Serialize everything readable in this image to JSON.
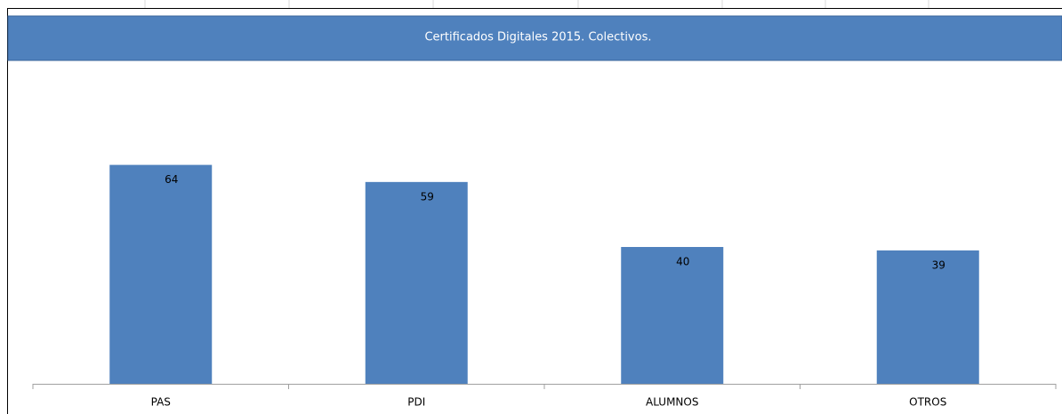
{
  "chart_data": {
    "type": "bar",
    "title": "Certificados Digitales 2015. Colectivos.",
    "categories": [
      "PAS",
      "PDI",
      "ALUMNOS",
      "OTROS"
    ],
    "values": [
      64,
      59,
      40,
      39
    ],
    "color": "#4f81bd"
  }
}
